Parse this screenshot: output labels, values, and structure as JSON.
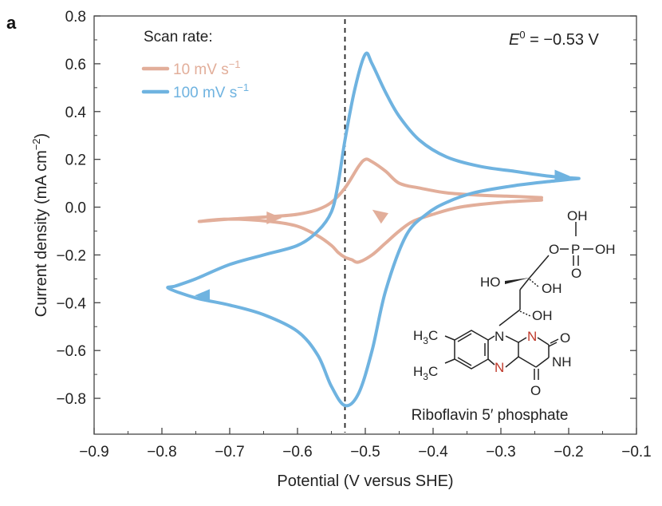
{
  "panel_label": "a",
  "chart_data": {
    "type": "line",
    "xlabel": "Potential (V versus SHE)",
    "ylabel_main": "Current density (mA cm",
    "ylabel_sup": "−2",
    "ylabel_close": ")",
    "xlim": [
      -0.9,
      -0.1
    ],
    "ylim": [
      -0.95,
      0.8
    ],
    "x_ticks": [
      -0.9,
      -0.8,
      -0.7,
      -0.6,
      -0.5,
      -0.4,
      -0.3,
      -0.2,
      -0.1
    ],
    "x_tick_labels": [
      "−0.9",
      "−0.8",
      "−0.7",
      "−0.6",
      "−0.5",
      "−0.4",
      "−0.3",
      "−0.2",
      "−0.1"
    ],
    "y_ticks": [
      0.8,
      0.6,
      0.4,
      0.2,
      0.0,
      -0.2,
      -0.4,
      -0.6,
      -0.8
    ],
    "y_tick_labels": [
      "0.8",
      "0.6",
      "0.4",
      "0.2",
      "0.0",
      "−0.2",
      "−0.4",
      "−0.6",
      "−0.8"
    ],
    "legend_title": "Scan rate:",
    "annotation": {
      "symbol": "E",
      "sup": "0",
      "rest": " = −0.53 V",
      "x": -0.53
    },
    "series": [
      {
        "name": "10 mV s",
        "name_sup": "−1",
        "color": "#e2ae9a",
        "x": [
          -0.24,
          -0.3,
          -0.36,
          -0.4,
          -0.43,
          -0.45,
          -0.47,
          -0.49,
          -0.51,
          -0.52,
          -0.53,
          -0.54,
          -0.55,
          -0.57,
          -0.6,
          -0.64,
          -0.7,
          -0.745,
          -0.7,
          -0.64,
          -0.6,
          -0.57,
          -0.55,
          -0.53,
          -0.51,
          -0.5,
          -0.49,
          -0.47,
          -0.45,
          -0.42,
          -0.38,
          -0.33,
          -0.28,
          -0.24
        ],
        "y": [
          0.03,
          0.02,
          0.0,
          -0.03,
          -0.06,
          -0.1,
          -0.15,
          -0.2,
          -0.23,
          -0.22,
          -0.21,
          -0.19,
          -0.16,
          -0.12,
          -0.08,
          -0.06,
          -0.05,
          -0.06,
          -0.05,
          -0.04,
          -0.03,
          -0.01,
          0.02,
          0.08,
          0.17,
          0.2,
          0.19,
          0.15,
          0.1,
          0.08,
          0.06,
          0.05,
          0.045,
          0.04
        ]
      },
      {
        "name": "100 mV s",
        "name_sup": "−1",
        "color": "#6fb3e0",
        "x": [
          -0.185,
          -0.22,
          -0.28,
          -0.34,
          -0.38,
          -0.41,
          -0.44,
          -0.47,
          -0.49,
          -0.51,
          -0.53,
          -0.55,
          -0.57,
          -0.6,
          -0.65,
          -0.7,
          -0.75,
          -0.79,
          -0.78,
          -0.75,
          -0.7,
          -0.65,
          -0.6,
          -0.57,
          -0.55,
          -0.54,
          -0.53,
          -0.515,
          -0.5,
          -0.49,
          -0.47,
          -0.45,
          -0.42,
          -0.38,
          -0.33,
          -0.28,
          -0.23,
          -0.185
        ],
        "y": [
          0.12,
          0.11,
          0.09,
          0.06,
          0.02,
          -0.03,
          -0.12,
          -0.35,
          -0.6,
          -0.78,
          -0.83,
          -0.75,
          -0.62,
          -0.52,
          -0.45,
          -0.41,
          -0.38,
          -0.34,
          -0.33,
          -0.3,
          -0.24,
          -0.2,
          -0.16,
          -0.1,
          -0.02,
          0.1,
          0.28,
          0.5,
          0.64,
          0.6,
          0.48,
          0.38,
          0.28,
          0.21,
          0.17,
          0.15,
          0.13,
          0.12
        ]
      }
    ],
    "arrows": [
      {
        "series": 0,
        "x": -0.635,
        "y": -0.045,
        "dir": "right"
      },
      {
        "series": 0,
        "x": -0.48,
        "y": -0.03,
        "dir": "left-up"
      },
      {
        "series": 1,
        "x": -0.21,
        "y": 0.13,
        "dir": "right"
      },
      {
        "series": 1,
        "x": -0.74,
        "y": -0.37,
        "dir": "left"
      }
    ]
  },
  "molecule": {
    "caption": "Riboflavin 5′ phosphate",
    "labels": {
      "oh_p_top": "OH",
      "p": "P",
      "oh_p_right": "OH",
      "o_p_bottom": "O",
      "o_link": "O",
      "ho_left": "HO",
      "oh_mid": "OH",
      "oh_low": "OH",
      "n10": "N",
      "n1": "N",
      "n5": "N",
      "o2": "O",
      "nh": "NH",
      "o4": "O",
      "h3c_a": "H",
      "h3c_b": "H",
      "sub3": "3",
      "c": "C"
    }
  }
}
